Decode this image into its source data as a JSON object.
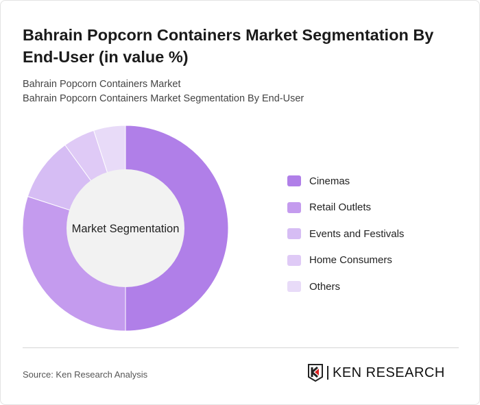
{
  "title": "Bahrain Popcorn Containers Market Segmentation By End-User (in value %)",
  "subtitle1": "Bahrain Popcorn Containers Market",
  "subtitle2": "Bahrain Popcorn Containers Market Segmentation By End-User",
  "source": "Source: Ken Research Analysis",
  "logo_text": "KEN RESEARCH",
  "chart_data": {
    "type": "pie",
    "donut": true,
    "center_label": "Market Segmentation",
    "categories": [
      "Cinemas",
      "Retail Outlets",
      "Events and Festivals",
      "Home Consumers",
      "Others"
    ],
    "values": [
      50,
      30,
      10,
      5,
      5
    ],
    "colors": [
      "#b07fe8",
      "#c49bee",
      "#d6bdf4",
      "#dfcaf6",
      "#e8dbf8"
    ],
    "legend_position": "right"
  }
}
